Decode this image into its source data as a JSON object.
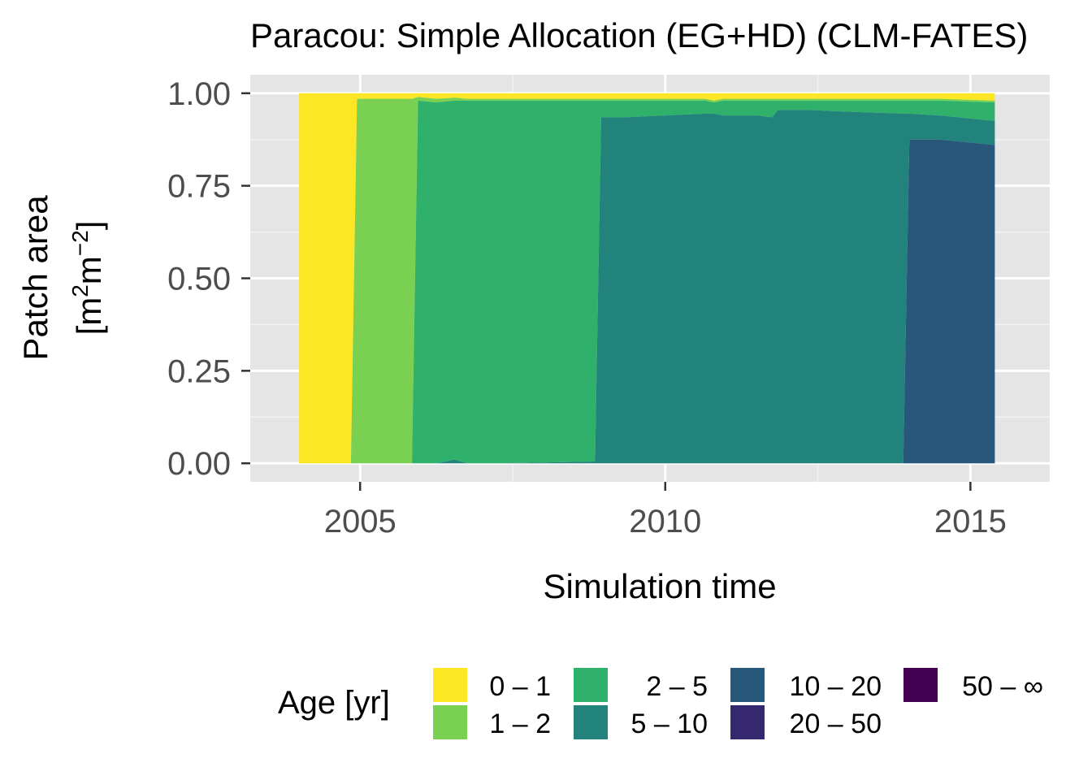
{
  "chart_data": {
    "type": "area",
    "title": "Paracou: Simple Allocation (EG+HD) (CLM-FATES)",
    "xlabel": "Simulation time",
    "ylabel_line1": "Patch area",
    "ylabel_unit_open": "[m",
    "ylabel_unit_exp1": "2",
    "ylabel_unit_mid": "m",
    "ylabel_unit_exp2": "−2",
    "ylabel_unit_close": "]",
    "xlim": [
      2003.2,
      2016.3
    ],
    "ylim": [
      -0.05,
      1.05
    ],
    "x_ticks": [
      2005,
      2010,
      2015
    ],
    "x_tick_labels": [
      "2005",
      "2010",
      "2015"
    ],
    "y_ticks": [
      0,
      0.25,
      0.5,
      0.75,
      1.0
    ],
    "y_tick_labels": [
      "0.00",
      "0.25",
      "0.50",
      "0.75",
      "1.00"
    ],
    "grid": true,
    "stacking": "stacked",
    "legend": {
      "title": "Age [yr]",
      "position": "bottom",
      "entries": [
        {
          "label": "0 – 1",
          "color": "#FDE725"
        },
        {
          "label": "1 – 2",
          "color": "#7AD151"
        },
        {
          "label": "2 – 5",
          "color": "#2FB06B"
        },
        {
          "label": "5 – 10",
          "color": "#21837B"
        },
        {
          "label": "10 – 20",
          "color": "#28577C"
        },
        {
          "label": "20 – 50",
          "color": "#35286F"
        },
        {
          "label": "50 – ∞",
          "color": "#440154"
        }
      ]
    },
    "x": [
      2004.0,
      2004.85,
      2004.95,
      2005.85,
      2005.95,
      2006.25,
      2006.55,
      2006.75,
      2007.35,
      2008.85,
      2008.95,
      2009.35,
      2010.0,
      2010.65,
      2010.8,
      2010.95,
      2011.5,
      2011.75,
      2011.85,
      2012.3,
      2013.0,
      2013.9,
      2014.0,
      2014.5,
      2015.4
    ],
    "series": [
      {
        "name": "0 – 1",
        "values": [
          1.0,
          1.0,
          0.015,
          0.015,
          0.01,
          0.015,
          0.012,
          0.015,
          0.015,
          0.015,
          0.015,
          0.015,
          0.015,
          0.015,
          0.02,
          0.015,
          0.015,
          0.015,
          0.015,
          0.015,
          0.015,
          0.015,
          0.015,
          0.015,
          0.02
        ]
      },
      {
        "name": "1 – 2",
        "values": [
          0.0,
          0.0,
          0.985,
          0.985,
          0.01,
          0.01,
          0.008,
          0.005,
          0.005,
          0.005,
          0.005,
          0.005,
          0.005,
          0.005,
          0.005,
          0.005,
          0.005,
          0.005,
          0.005,
          0.005,
          0.005,
          0.005,
          0.005,
          0.005,
          0.005
        ]
      },
      {
        "name": "2 – 5",
        "values": [
          0.0,
          0.0,
          0.0,
          0.0,
          0.98,
          0.975,
          0.97,
          0.98,
          0.98,
          0.975,
          0.045,
          0.045,
          0.04,
          0.035,
          0.03,
          0.04,
          0.04,
          0.045,
          0.025,
          0.025,
          0.03,
          0.035,
          0.035,
          0.04,
          0.05
        ]
      },
      {
        "name": "5 – 10",
        "values": [
          0.0,
          0.0,
          0.0,
          0.0,
          0.0,
          0.0,
          0.01,
          0.0,
          0.0,
          0.005,
          0.935,
          0.935,
          0.94,
          0.945,
          0.945,
          0.94,
          0.94,
          0.935,
          0.955,
          0.955,
          0.95,
          0.945,
          0.07,
          0.065,
          0.065
        ]
      },
      {
        "name": "10 – 20",
        "values": [
          0.0,
          0.0,
          0.0,
          0.0,
          0.0,
          0.0,
          0.0,
          0.0,
          0.0,
          0.0,
          0.0,
          0.0,
          0.0,
          0.0,
          0.0,
          0.0,
          0.0,
          0.0,
          0.0,
          0.0,
          0.0,
          0.0,
          0.875,
          0.88,
          0.86
        ]
      },
      {
        "name": "20 – 50",
        "values": [
          0.0,
          0.0,
          0.0,
          0.0,
          0.0,
          0.0,
          0.0,
          0.0,
          0.0,
          0.0,
          0.0,
          0.0,
          0.0,
          0.0,
          0.0,
          0.0,
          0.0,
          0.0,
          0.0,
          0.0,
          0.0,
          0.0,
          0.0,
          0.0,
          0.0
        ]
      },
      {
        "name": "50 – ∞",
        "values": [
          0.0,
          0.0,
          0.0,
          0.0,
          0.0,
          0.0,
          0.0,
          0.0,
          0.0,
          0.0,
          0.0,
          0.0,
          0.0,
          0.0,
          0.0,
          0.0,
          0.0,
          0.0,
          0.0,
          0.0,
          0.0,
          0.0,
          0.0,
          0.0,
          0.0
        ]
      }
    ]
  }
}
